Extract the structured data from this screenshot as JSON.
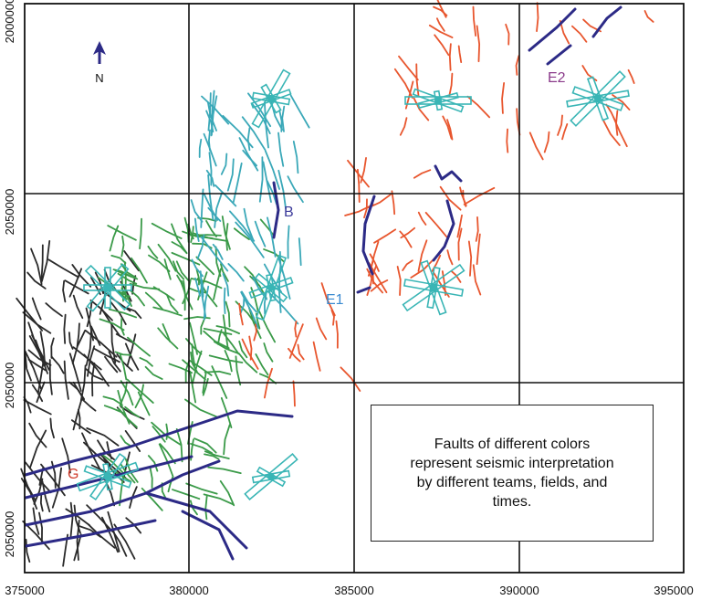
{
  "map": {
    "north_label": "N",
    "y_axis_labels": [
      "2000000",
      "2050000",
      "2050000",
      "2050000"
    ],
    "x_axis_labels": [
      "375000",
      "380000",
      "385000",
      "390000",
      "395000"
    ],
    "markers": [
      {
        "label": "B",
        "color": "#3b3a9a"
      },
      {
        "label": "E1",
        "color": "#3a8ad0"
      },
      {
        "label": "E2",
        "color": "#8a3a8a"
      },
      {
        "label": "G",
        "color": "#d03a2a"
      }
    ]
  },
  "legend": {
    "text": "Faults of different colors represent seismic interpretation by different teams, fields, and times."
  },
  "colors": {
    "grid": "#111111",
    "fault_black": "#2a2a2a",
    "fault_green": "#3a9a48",
    "fault_cyan": "#3aa8b8",
    "fault_red": "#e8562e",
    "fault_navy": "#2c2a86",
    "rose": "#39b5b5"
  }
}
